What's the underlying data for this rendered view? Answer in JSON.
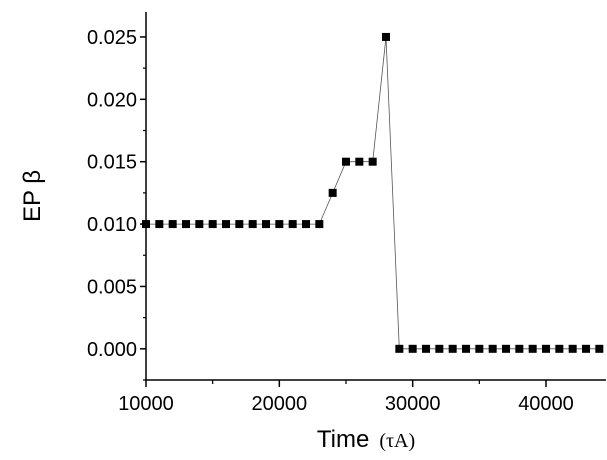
{
  "chart_data": {
    "type": "line",
    "title": "",
    "xlabel": "Time",
    "xlabel_unit": "(τA)",
    "ylabel": "EP β",
    "xlim": [
      10000,
      44500
    ],
    "ylim": [
      -0.0025,
      0.027
    ],
    "x_ticks": [
      10000,
      20000,
      30000,
      40000
    ],
    "x_tick_labels": [
      "10000",
      "20000",
      "30000",
      "40000"
    ],
    "y_ticks": [
      0.0,
      0.005,
      0.01,
      0.015,
      0.02,
      0.025
    ],
    "y_tick_labels": [
      "0.000",
      "0.005",
      "0.010",
      "0.015",
      "0.020",
      "0.025"
    ],
    "grid": false,
    "legend": "none",
    "marker": "square",
    "color": "#000000",
    "series": [
      {
        "x": [
          10000,
          11000,
          12000,
          13000,
          14000,
          15000,
          16000,
          17000,
          18000,
          19000,
          20000,
          21000,
          22000,
          23000,
          24000,
          25000,
          26000,
          27000,
          28000,
          29000,
          30000,
          31000,
          32000,
          33000,
          34000,
          35000,
          36000,
          37000,
          38000,
          39000,
          40000,
          41000,
          42000,
          43000,
          44000
        ],
        "y": [
          0.01,
          0.01,
          0.01,
          0.01,
          0.01,
          0.01,
          0.01,
          0.01,
          0.01,
          0.01,
          0.01,
          0.01,
          0.01,
          0.01,
          0.0125,
          0.015,
          0.015,
          0.015,
          0.025,
          0.0,
          0.0,
          0.0,
          0.0,
          0.0,
          0.0,
          0.0,
          0.0,
          0.0,
          0.0,
          0.0,
          0.0,
          0.0,
          0.0,
          0.0,
          0.0
        ]
      }
    ]
  }
}
